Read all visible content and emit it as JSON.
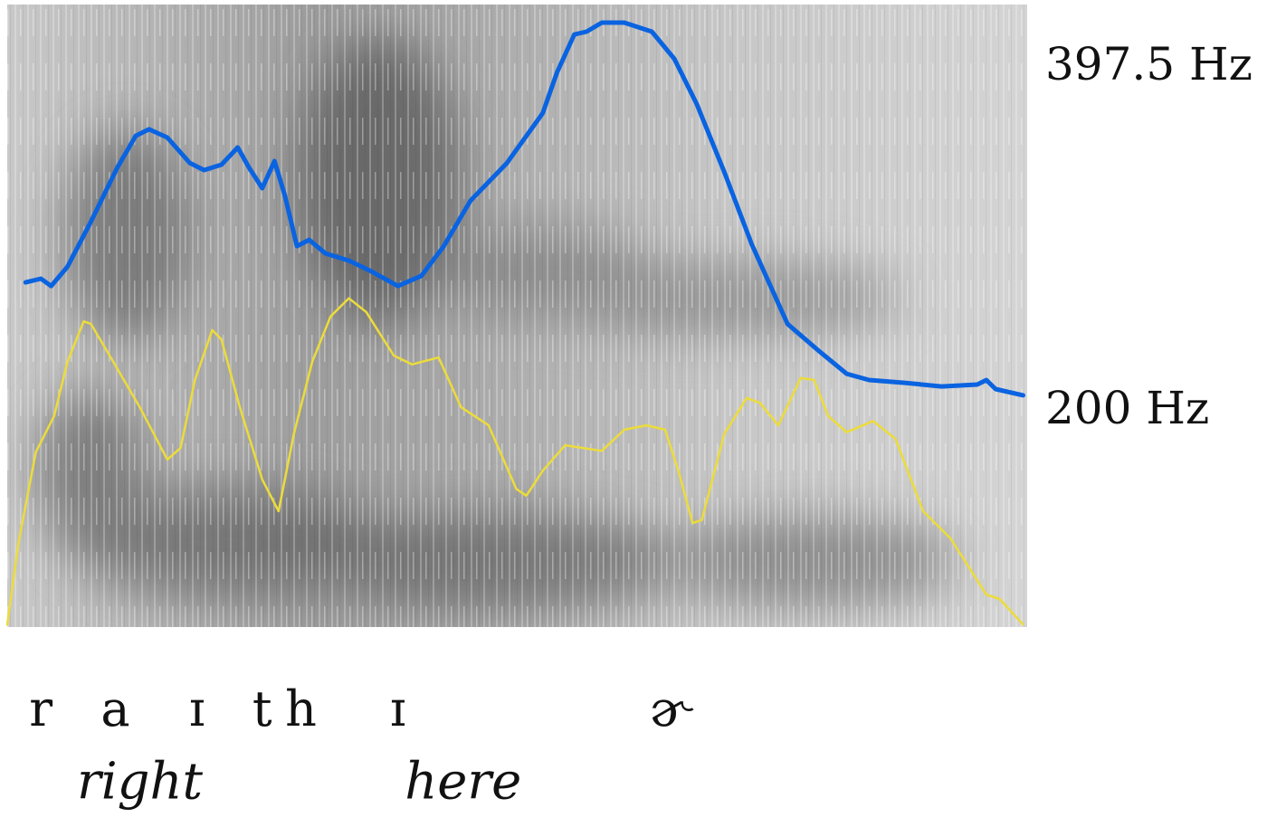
{
  "chart_data": {
    "type": "line",
    "xlim": [
      0,
      100
    ],
    "ylim": [
      76.3,
      433.9
    ],
    "yticks": [
      {
        "value": 397.5,
        "label": "397.5 Hz"
      },
      {
        "value": 200,
        "label": "200 Hz"
      }
    ],
    "y2lim": [
      0,
      100
    ],
    "series": [
      {
        "color": "#0a63e0",
        "x": [
          1.8,
          3.3,
          4.3,
          5.9,
          8.2,
          10.8,
          12.6,
          13.9,
          15.7,
          17.9,
          19.3,
          21.0,
          22.6,
          23.7,
          25.0,
          26.2,
          27.2,
          28.4,
          29.6,
          31.2,
          33.5,
          35.7,
          38.3,
          40.6,
          42.8,
          45.4,
          49.0,
          52.5,
          53.9,
          55.6,
          56.8,
          58.3,
          60.5,
          63.2,
          65.4,
          67.6,
          70.3,
          73.0,
          76.5,
          79.6,
          82.3,
          84.5,
          88.0,
          91.6,
          95.1,
          96.0,
          96.9,
          99.6
        ],
        "values": [
          274.3,
          276.4,
          272.2,
          283.2,
          309.1,
          340.3,
          358.5,
          362.2,
          357.5,
          342.9,
          338.8,
          341.9,
          351.8,
          340.3,
          328.4,
          344.0,
          324.7,
          295.1,
          298.7,
          290.9,
          286.8,
          280.6,
          272.2,
          278.0,
          295.1,
          321.1,
          342.9,
          371.5,
          394.9,
          416.7,
          418.3,
          423.5,
          423.5,
          418.3,
          402.7,
          376.7,
          337.7,
          296.1,
          250.4,
          234.8,
          221.8,
          218.2,
          216.6,
          214.5,
          215.6,
          218.2,
          213.0,
          209.4
        ]
      },
      {
        "color": "#ecdc3a",
        "axis": "y2",
        "x": [
          0.0,
          1.1,
          2.8,
          4.6,
          5.9,
          7.5,
          8.2,
          10.4,
          13.0,
          15.7,
          17.0,
          18.4,
          20.1,
          21.0,
          22.8,
          25.0,
          26.6,
          28.1,
          29.9,
          31.7,
          33.5,
          35.2,
          37.9,
          39.7,
          42.3,
          44.5,
          47.2,
          49.9,
          50.9,
          52.5,
          54.7,
          58.3,
          60.5,
          62.7,
          64.5,
          65.8,
          67.2,
          68.1,
          70.3,
          72.5,
          73.8,
          75.6,
          77.8,
          79.1,
          80.5,
          82.3,
          84.9,
          87.1,
          89.8,
          92.5,
          96.0,
          97.3,
          99.6
        ],
        "values": [
          0.4,
          13.5,
          28.1,
          33.9,
          42.6,
          49.1,
          48.7,
          42.6,
          35.3,
          26.9,
          28.8,
          39.7,
          47.7,
          46.2,
          35.3,
          23.7,
          18.6,
          31.0,
          42.6,
          49.9,
          52.8,
          50.6,
          43.6,
          42.2,
          43.3,
          35.3,
          32.4,
          22.2,
          21.1,
          25.1,
          29.2,
          28.3,
          31.7,
          32.4,
          31.7,
          25.1,
          16.7,
          17.2,
          31.0,
          36.8,
          36.0,
          32.4,
          40.0,
          39.7,
          33.9,
          31.3,
          33.1,
          30.2,
          18.6,
          14.2,
          5.2,
          4.5,
          0.4
        ]
      }
    ],
    "phones": {
      "labels": [
        "r",
        "a",
        "ɪ",
        "t",
        "h",
        "ɪ",
        "ɚ"
      ],
      "x": [
        3.3,
        10.6,
        18.6,
        25.0,
        28.8,
        38.3,
        65.0
      ]
    },
    "words": {
      "labels": [
        "right",
        "here"
      ],
      "x": [
        13.0,
        44.7
      ]
    }
  }
}
